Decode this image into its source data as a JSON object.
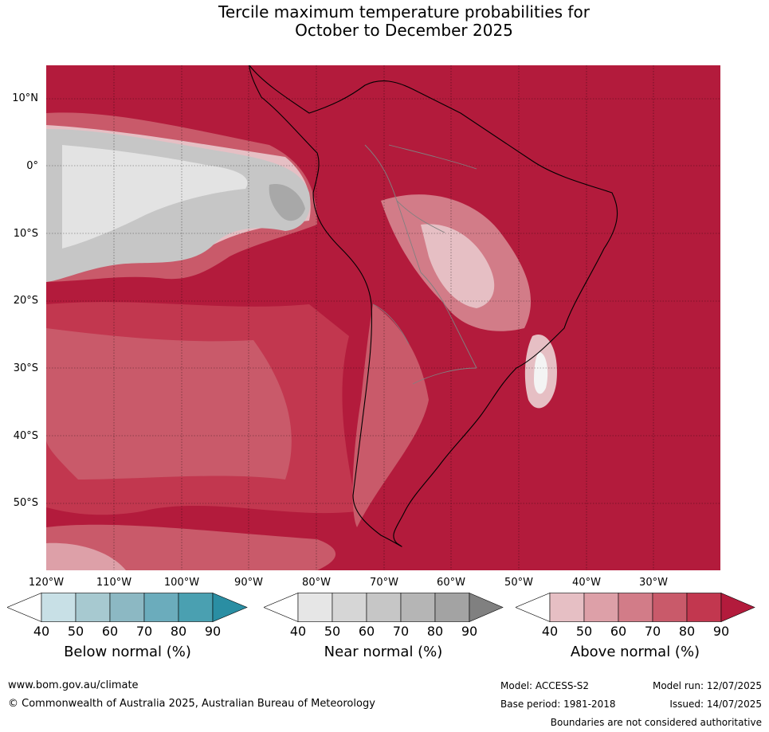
{
  "title": {
    "line1": "Tercile maximum temperature probabilities for",
    "line2": "October to December 2025"
  },
  "map": {
    "latitude_labels": [
      "10°N",
      "0°",
      "10°S",
      "20°S",
      "30°S",
      "40°S",
      "50°S"
    ],
    "longitude_labels": [
      "120°W",
      "110°W",
      "100°W",
      "90°W",
      "80°W",
      "70°W",
      "60°W",
      "50°W",
      "40°W",
      "30°W"
    ],
    "colors": {
      "above_90": "#b31b3c",
      "above_80": "#c2374f",
      "above_70": "#c95a6a",
      "above_60": "#d27c88",
      "above_50": "#dda0a8",
      "above_40": "#e6bfc4",
      "near_70": "#c6c6c6",
      "near_80": "#a8a8a8",
      "near_50": "#e3e3e3",
      "coastline": "#000000",
      "borders": "#808080"
    }
  },
  "colorbars": {
    "below": {
      "title": "Below normal (%)",
      "ticks": [
        "40",
        "50",
        "60",
        "70",
        "80",
        "90"
      ],
      "colors": [
        "#ffffff",
        "#c8e0e6",
        "#a7c9d0",
        "#8cb8c3",
        "#6bacbc",
        "#4aa0b1",
        "#2a8ea3"
      ]
    },
    "near": {
      "title": "Near normal (%)",
      "ticks": [
        "40",
        "50",
        "60",
        "70",
        "80",
        "90"
      ],
      "colors": [
        "#ffffff",
        "#e6e6e6",
        "#d6d6d6",
        "#c6c6c6",
        "#b5b5b5",
        "#a3a3a3",
        "#808080"
      ]
    },
    "above": {
      "title": "Above normal (%)",
      "ticks": [
        "40",
        "50",
        "60",
        "70",
        "80",
        "90"
      ],
      "colors": [
        "#ffffff",
        "#e6bfc4",
        "#dda0a8",
        "#d27c88",
        "#c95a6a",
        "#c2374f",
        "#b31b3c"
      ]
    }
  },
  "footer": {
    "website": "www.bom.gov.au/climate",
    "copyright": "© Commonwealth of Australia 2025, Australian Bureau of Meteorology",
    "model": "Model: ACCESS-S2",
    "base_period": "Base period: 1981-2018",
    "model_run": "Model run: 12/07/2025",
    "issued": "Issued: 14/07/2025",
    "disclaimer": "Boundaries are not considered authoritative"
  }
}
